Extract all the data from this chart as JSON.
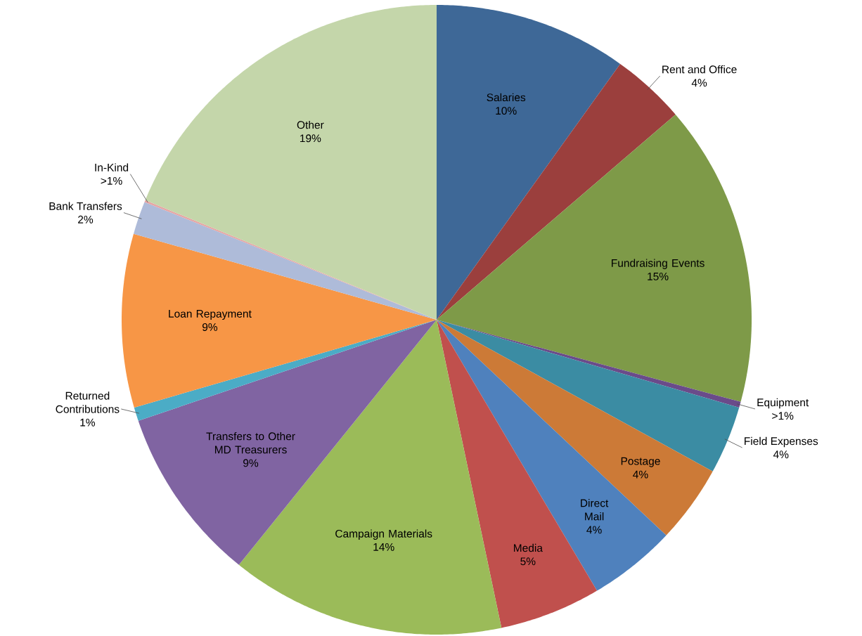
{
  "chart_data": {
    "type": "pie",
    "categories": [
      "Salaries",
      "Rent and Office",
      "Fundraising Events",
      "Equipment",
      "Field Expenses",
      "Postage",
      "Direct Mail",
      "Media",
      "Campaign Materials",
      "Transfers to Other MD Treasurers",
      "Returned Contributions",
      "Loan Repayment",
      "Bank Transfers",
      "In-Kind",
      "Other"
    ],
    "values": [
      9.9,
      3.8,
      15.5,
      0.3,
      3.5,
      4.0,
      4.5,
      5.2,
      14.1,
      9.0,
      0.7,
      8.9,
      1.7,
      0.1,
      18.8
    ],
    "value_labels": [
      "10%",
      "4%",
      "15%",
      ">1%",
      "4%",
      "4%",
      "4%",
      "5%",
      "14%",
      "9%",
      "1%",
      "9%",
      "2%",
      ">1%",
      "19%"
    ],
    "colors": [
      "#3e6897",
      "#9b3f3d",
      "#7e9a48",
      "#6a4b8a",
      "#3b8ca3",
      "#cc7a37",
      "#4f81bd",
      "#c0504d",
      "#9bbb59",
      "#8064a2",
      "#4bacc6",
      "#f79646",
      "#aebbd9",
      "#e6a6a5",
      "#c4d6aa"
    ]
  }
}
